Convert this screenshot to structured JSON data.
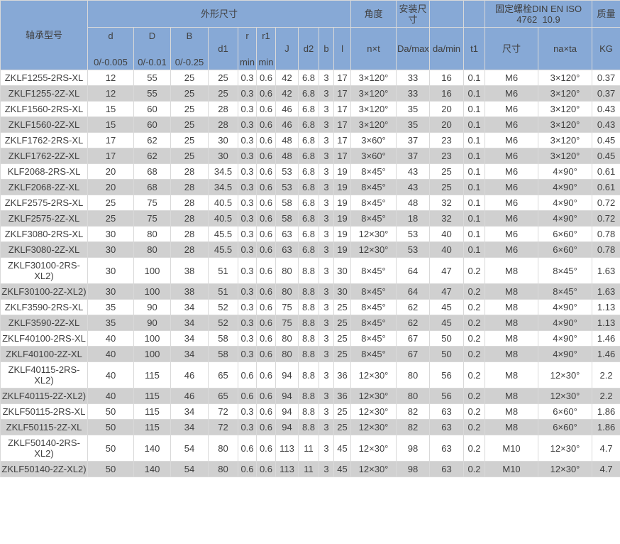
{
  "colors": {
    "header_bg": "#87a9d6",
    "alt_row_bg": "#d0d0d0",
    "row_bg": "#ffffff",
    "border": "#d9d9d9",
    "text": "#404040"
  },
  "table": {
    "header": {
      "model": "轴承型号",
      "groups": {
        "dims": "外形尺寸",
        "angle": "角度",
        "mount": "安装尺寸",
        "blank_over_damin": "",
        "blank_over_t1": "",
        "bolt": "固定螺栓DIN EN ISO\n4762  10.9",
        "mass": "质量"
      },
      "cols": [
        {
          "label": "d",
          "sub": "0/-0.005"
        },
        {
          "label": "D",
          "sub": "0/-0.01"
        },
        {
          "label": "B",
          "sub": "0/-0.25"
        },
        {
          "label": "d1"
        },
        {
          "label": "r",
          "sub": "min"
        },
        {
          "label": "r1",
          "sub": "min"
        },
        {
          "label": "J"
        },
        {
          "label": "d2"
        },
        {
          "label": "b"
        },
        {
          "label": "l"
        },
        {
          "label": "n×t"
        },
        {
          "label": "Da/max"
        },
        {
          "label": "da/min"
        },
        {
          "label": "t1"
        },
        {
          "label": "尺寸"
        },
        {
          "label": "na×ta"
        },
        {
          "label": "KG"
        }
      ]
    },
    "rows": [
      [
        "ZKLF1255-2RS-XL",
        "12",
        "55",
        "25",
        "25",
        "0.3",
        "0.6",
        "42",
        "6.8",
        "3",
        "17",
        "3×120°",
        "33",
        "16",
        "0.1",
        "M6",
        "3×120°",
        "0.37"
      ],
      [
        "ZKLF1255-2Z-XL",
        "12",
        "55",
        "25",
        "25",
        "0.3",
        "0.6",
        "42",
        "6.8",
        "3",
        "17",
        "3×120°",
        "33",
        "16",
        "0.1",
        "M6",
        "3×120°",
        "0.37"
      ],
      [
        "ZKLF1560-2RS-XL",
        "15",
        "60",
        "25",
        "28",
        "0.3",
        "0.6",
        "46",
        "6.8",
        "3",
        "17",
        "3×120°",
        "35",
        "20",
        "0.1",
        "M6",
        "3×120°",
        "0.43"
      ],
      [
        "ZKLF1560-2Z-XL",
        "15",
        "60",
        "25",
        "28",
        "0.3",
        "0.6",
        "46",
        "6.8",
        "3",
        "17",
        "3×120°",
        "35",
        "20",
        "0.1",
        "M6",
        "3×120°",
        "0.43"
      ],
      [
        "ZKLF1762-2RS-XL",
        "17",
        "62",
        "25",
        "30",
        "0.3",
        "0.6",
        "48",
        "6.8",
        "3",
        "17",
        "3×60°",
        "37",
        "23",
        "0.1",
        "M6",
        "3×120°",
        "0.45"
      ],
      [
        "ZKLF1762-2Z-XL",
        "17",
        "62",
        "25",
        "30",
        "0.3",
        "0.6",
        "48",
        "6.8",
        "3",
        "17",
        "3×60°",
        "37",
        "23",
        "0.1",
        "M6",
        "3×120°",
        "0.45"
      ],
      [
        "KLF2068-2RS-XL",
        "20",
        "68",
        "28",
        "34.5",
        "0.3",
        "0.6",
        "53",
        "6.8",
        "3",
        "19",
        "8×45°",
        "43",
        "25",
        "0.1",
        "M6",
        "4×90°",
        "0.61"
      ],
      [
        "ZKLF2068-2Z-XL",
        "20",
        "68",
        "28",
        "34.5",
        "0.3",
        "0.6",
        "53",
        "6.8",
        "3",
        "19",
        "8×45°",
        "43",
        "25",
        "0.1",
        "M6",
        "4×90°",
        "0.61"
      ],
      [
        "ZKLF2575-2RS-XL",
        "25",
        "75",
        "28",
        "40.5",
        "0.3",
        "0.6",
        "58",
        "6.8",
        "3",
        "19",
        "8×45°",
        "48",
        "32",
        "0.1",
        "M6",
        "4×90°",
        "0.72"
      ],
      [
        "ZKLF2575-2Z-XL",
        "25",
        "75",
        "28",
        "40.5",
        "0.3",
        "0.6",
        "58",
        "6.8",
        "3",
        "19",
        "8×45°",
        "18",
        "32",
        "0.1",
        "M6",
        "4×90°",
        "0.72"
      ],
      [
        "ZKLF3080-2RS-XL",
        "30",
        "80",
        "28",
        "45.5",
        "0.3",
        "0.6",
        "63",
        "6.8",
        "3",
        "19",
        "12×30°",
        "53",
        "40",
        "0.1",
        "M6",
        "6×60°",
        "0.78"
      ],
      [
        "ZKLF3080-2Z-XL",
        "30",
        "80",
        "28",
        "45.5",
        "0.3",
        "0.6",
        "63",
        "6.8",
        "3",
        "19",
        "12×30°",
        "53",
        "40",
        "0.1",
        "M6",
        "6×60°",
        "0.78"
      ],
      [
        "ZKLF30100-2RS-XL2)",
        "30",
        "100",
        "38",
        "51",
        "0.3",
        "0.6",
        "80",
        "8.8",
        "3",
        "30",
        "8×45°",
        "64",
        "47",
        "0.2",
        "M8",
        "8×45°",
        "1.63"
      ],
      [
        "ZKLF30100-2Z-XL2)",
        "30",
        "100",
        "38",
        "51",
        "0.3",
        "0.6",
        "80",
        "8.8",
        "3",
        "30",
        "8×45°",
        "64",
        "47",
        "0.2",
        "M8",
        "8×45°",
        "1.63"
      ],
      [
        "ZKLF3590-2RS-XL",
        "35",
        "90",
        "34",
        "52",
        "0.3",
        "0.6",
        "75",
        "8.8",
        "3",
        "25",
        "8×45°",
        "62",
        "45",
        "0.2",
        "M8",
        "4×90°",
        "1.13"
      ],
      [
        "ZKLF3590-2Z-XL",
        "35",
        "90",
        "34",
        "52",
        "0.3",
        "0.6",
        "75",
        "8.8",
        "3",
        "25",
        "8×45°",
        "62",
        "45",
        "0.2",
        "M8",
        "4×90°",
        "1.13"
      ],
      [
        "ZKLF40100-2RS-XL",
        "40",
        "100",
        "34",
        "58",
        "0.3",
        "0.6",
        "80",
        "8.8",
        "3",
        "25",
        "8×45°",
        "67",
        "50",
        "0.2",
        "M8",
        "4×90°",
        "1.46"
      ],
      [
        "ZKLF40100-2Z-XL",
        "40",
        "100",
        "34",
        "58",
        "0.3",
        "0.6",
        "80",
        "8.8",
        "3",
        "25",
        "8×45°",
        "67",
        "50",
        "0.2",
        "M8",
        "4×90°",
        "1.46"
      ],
      [
        "ZKLF40115-2RS-XL2)",
        "40",
        "115",
        "46",
        "65",
        "0.6",
        "0.6",
        "94",
        "8.8",
        "3",
        "36",
        "12×30°",
        "80",
        "56",
        "0.2",
        "M8",
        "12×30°",
        "2.2"
      ],
      [
        "ZKLF40115-2Z-XL2)",
        "40",
        "115",
        "46",
        "65",
        "0.6",
        "0.6",
        "94",
        "8.8",
        "3",
        "36",
        "12×30°",
        "80",
        "56",
        "0.2",
        "M8",
        "12×30°",
        "2.2"
      ],
      [
        "ZKLF50115-2RS-XL",
        "50",
        "115",
        "34",
        "72",
        "0.3",
        "0.6",
        "94",
        "8.8",
        "3",
        "25",
        "12×30°",
        "82",
        "63",
        "0.2",
        "M8",
        "6×60°",
        "1.86"
      ],
      [
        "ZKLF50115-2Z-XL",
        "50",
        "115",
        "34",
        "72",
        "0.3",
        "0.6",
        "94",
        "8.8",
        "3",
        "25",
        "12×30°",
        "82",
        "63",
        "0.2",
        "M8",
        "6×60°",
        "1.86"
      ],
      [
        "ZKLF50140-2RS-XL2)",
        "50",
        "140",
        "54",
        "80",
        "0.6",
        "0.6",
        "113",
        "11",
        "3",
        "45",
        "12×30°",
        "98",
        "63",
        "0.2",
        "M10",
        "12×30°",
        "4.7"
      ],
      [
        "ZKLF50140-2Z-XL2)",
        "50",
        "140",
        "54",
        "80",
        "0.6",
        "0.6",
        "113",
        "11",
        "3",
        "45",
        "12×30°",
        "98",
        "63",
        "0.2",
        "M10",
        "12×30°",
        "4.7"
      ]
    ]
  }
}
